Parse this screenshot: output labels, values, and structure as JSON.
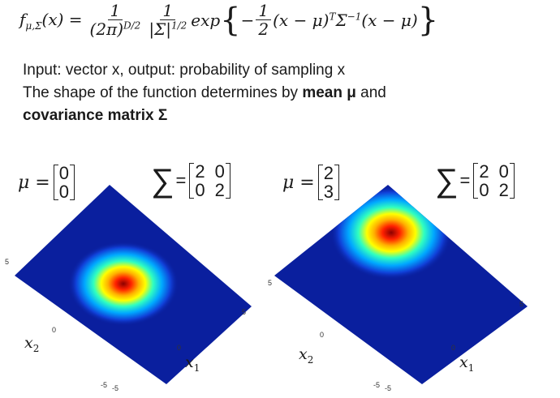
{
  "equation": {
    "lhs_f": "f",
    "lhs_sub": "μ,Σ",
    "lhs_arg": "(x) =",
    "frac1_num": "1",
    "frac1_den_base": "(2π)",
    "frac1_den_exp": "D/2",
    "frac2_num": "1",
    "frac2_den_base": "|Σ|",
    "frac2_den_exp": "1/2",
    "exp_word": "exp",
    "brace_open": "{",
    "minus": "−",
    "half_num": "1",
    "half_den": "2",
    "term1": "(x − μ)",
    "term1_sup": "T",
    "term2": "Σ",
    "term2_sup": "−1",
    "term3": "(x − μ)",
    "brace_close": "}"
  },
  "text": {
    "line1": "Input: vector x, output: probability of sampling x",
    "line2_plain": "The shape of the function determines by ",
    "line2_bold": "mean μ",
    "line2_tail": " and",
    "line3_bold": "covariance matrix Σ"
  },
  "left_example": {
    "mu_label": "μ =",
    "mu": [
      "0",
      "0"
    ],
    "sigma_symbol": "∑",
    "sigma_eq": "=",
    "sigma": [
      [
        "2",
        "0"
      ],
      [
        "0",
        "2"
      ]
    ],
    "mean_value": [
      0,
      0
    ]
  },
  "right_example": {
    "mu_label": "μ =",
    "mu": [
      "2",
      "3"
    ],
    "sigma_symbol": "∑",
    "sigma_eq": "=",
    "sigma": [
      [
        "2",
        "0"
      ],
      [
        "0",
        "2"
      ]
    ],
    "mean_value": [
      2,
      3
    ]
  },
  "plot_axes": {
    "x1_label": "x",
    "x1_sub": "1",
    "x2_label": "x",
    "x2_sub": "2",
    "tick_5": "5",
    "tick_0": "0",
    "tick_m5": "-5",
    "range": [
      -5,
      5
    ]
  },
  "colormap": {
    "low": "#0a1f9e",
    "mid_low": "#00b8ff",
    "mid": "#ffff00",
    "mid_high": "#ff5000",
    "high": "#8c0000"
  }
}
